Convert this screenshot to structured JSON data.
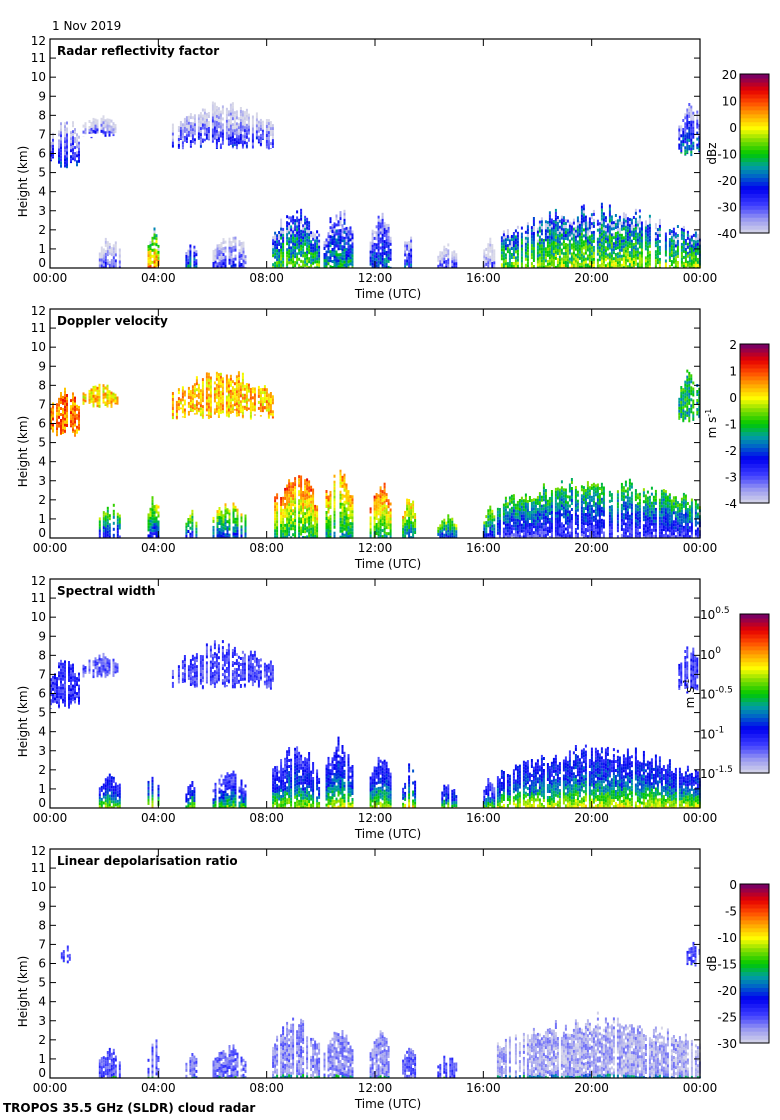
{
  "date_label": "1 Nov 2019",
  "footer_label": "TROPOS 35.5 GHz (SLDR) cloud radar",
  "chart_data": [
    {
      "type": "heatmap",
      "title": "Radar reflectivity factor",
      "xlabel": "Time (UTC)",
      "ylabel": "Height (km)",
      "xlim": [
        0,
        24
      ],
      "ylim": [
        0,
        12
      ],
      "xticks": [
        "00:00",
        "04:00",
        "08:00",
        "12:00",
        "16:00",
        "20:00",
        "00:00"
      ],
      "yticks": [
        "0",
        "1",
        "2",
        "3",
        "4",
        "5",
        "6",
        "7",
        "8",
        "9",
        "10",
        "11",
        "12"
      ],
      "colorbar": {
        "label": "dBz",
        "range": [
          -40,
          20
        ],
        "ticks": [
          "20",
          "10",
          "0",
          "-10",
          "-20",
          "-30",
          "-40"
        ]
      },
      "mode": "dbz",
      "clouds": [
        {
          "t0": 0.0,
          "t1": 1.1,
          "h0": 5.2,
          "h1": 8.3,
          "v": -30
        },
        {
          "t0": 1.2,
          "t1": 2.5,
          "h0": 6.8,
          "h1": 8.2,
          "v": -35
        },
        {
          "t0": 4.5,
          "t1": 8.2,
          "h0": 6.2,
          "h1": 8.9,
          "v": -33
        },
        {
          "t0": 23.2,
          "t1": 24.0,
          "h0": 5.8,
          "h1": 9.1,
          "v": -25
        },
        {
          "t0": 1.8,
          "t1": 2.6,
          "h0": 0,
          "h1": 1.8,
          "v": -34
        },
        {
          "t0": 3.6,
          "t1": 4.0,
          "h0": 0,
          "h1": 2.5,
          "v": 0
        },
        {
          "t0": 5.0,
          "t1": 5.4,
          "h0": 0,
          "h1": 1.7,
          "v": -22
        },
        {
          "t0": 6.0,
          "t1": 7.2,
          "h0": 0,
          "h1": 2.2,
          "v": -33
        },
        {
          "t0": 8.2,
          "t1": 9.9,
          "h0": 0,
          "h1": 3.6,
          "v": -15
        },
        {
          "t0": 10.1,
          "t1": 11.2,
          "h0": 0,
          "h1": 3.4,
          "v": -20
        },
        {
          "t0": 11.8,
          "t1": 12.6,
          "h0": 0,
          "h1": 3.2,
          "v": -25
        },
        {
          "t0": 13.0,
          "t1": 13.5,
          "h0": 0,
          "h1": 2.1,
          "v": -28
        },
        {
          "t0": 14.3,
          "t1": 15.0,
          "h0": 0,
          "h1": 1.4,
          "v": -33
        },
        {
          "t0": 16.0,
          "t1": 16.4,
          "h0": 0,
          "h1": 1.8,
          "v": -36
        },
        {
          "t0": 16.5,
          "t1": 24.0,
          "h0": 0,
          "h1": 3.5,
          "v": -12
        }
      ]
    },
    {
      "type": "heatmap",
      "title": "Doppler velocity",
      "xlabel": "Time (UTC)",
      "ylabel": "Height (km)",
      "xlim": [
        0,
        24
      ],
      "ylim": [
        0,
        12
      ],
      "xticks": [
        "00:00",
        "04:00",
        "08:00",
        "12:00",
        "16:00",
        "20:00",
        "00:00"
      ],
      "yticks": [
        "0",
        "1",
        "2",
        "3",
        "4",
        "5",
        "6",
        "7",
        "8",
        "9",
        "10",
        "11",
        "12"
      ],
      "colorbar": {
        "label": "m s-1",
        "range": [
          -4,
          2
        ],
        "ticks": [
          "2",
          "1",
          "0",
          "-1",
          "-2",
          "-3",
          "-4"
        ]
      },
      "mode": "vel",
      "clouds": [
        {
          "t0": 0.0,
          "t1": 1.1,
          "h0": 5.2,
          "h1": 8.3,
          "v": 0.7
        },
        {
          "t0": 1.2,
          "t1": 2.5,
          "h0": 6.8,
          "h1": 8.4,
          "v": 0.2
        },
        {
          "t0": 4.5,
          "t1": 8.2,
          "h0": 6.2,
          "h1": 9.0,
          "v": 0.3
        },
        {
          "t0": 23.2,
          "t1": 24.0,
          "h0": 6.0,
          "h1": 9.1,
          "v": -1.2
        },
        {
          "t0": 1.8,
          "t1": 2.6,
          "h0": 0,
          "h1": 2.0,
          "v": -1.5
        },
        {
          "t0": 3.6,
          "t1": 4.0,
          "h0": 0,
          "h1": 2.6,
          "v": -1.2
        },
        {
          "t0": 5.0,
          "t1": 5.4,
          "h0": 0,
          "h1": 1.7,
          "v": -1.4
        },
        {
          "t0": 6.0,
          "t1": 7.2,
          "h0": 0,
          "h1": 2.2,
          "v": -1.0
        },
        {
          "t0": 8.2,
          "t1": 9.9,
          "h0": 0,
          "h1": 3.8,
          "v": 0.0
        },
        {
          "t0": 10.1,
          "t1": 11.2,
          "h0": 0,
          "h1": 4.0,
          "v": -0.3
        },
        {
          "t0": 11.8,
          "t1": 12.6,
          "h0": 0,
          "h1": 3.3,
          "v": 0.0
        },
        {
          "t0": 13.0,
          "t1": 13.5,
          "h0": 0,
          "h1": 2.5,
          "v": -0.7
        },
        {
          "t0": 14.3,
          "t1": 15.0,
          "h0": 0,
          "h1": 1.4,
          "v": -1.3
        },
        {
          "t0": 16.0,
          "t1": 16.4,
          "h0": 0,
          "h1": 2.0,
          "v": -1.4
        },
        {
          "t0": 16.5,
          "t1": 24.0,
          "h0": 0,
          "h1": 3.6,
          "v": -1.8
        }
      ]
    },
    {
      "type": "heatmap",
      "title": "Spectral width",
      "xlabel": "Time (UTC)",
      "ylabel": "Height (km)",
      "xlim": [
        0,
        24
      ],
      "ylim": [
        0,
        12
      ],
      "xticks": [
        "00:00",
        "04:00",
        "08:00",
        "12:00",
        "16:00",
        "20:00",
        "00:00"
      ],
      "yticks": [
        "0",
        "1",
        "2",
        "3",
        "4",
        "5",
        "6",
        "7",
        "8",
        "9",
        "10",
        "11",
        "12"
      ],
      "colorbar": {
        "label": "m s-1",
        "range": [
          -1.5,
          0.5
        ],
        "scale": "log10",
        "ticks": [
          "10^0.5",
          "10^0",
          "10^-0.5",
          "10^-1",
          "10^-1.5"
        ]
      },
      "mode": "sw",
      "clouds": [
        {
          "t0": 0.0,
          "t1": 1.1,
          "h0": 5.2,
          "h1": 8.3,
          "v": -1.1
        },
        {
          "t0": 1.2,
          "t1": 2.5,
          "h0": 6.8,
          "h1": 8.4,
          "v": -1.2
        },
        {
          "t0": 4.5,
          "t1": 8.2,
          "h0": 6.2,
          "h1": 8.9,
          "v": -1.15
        },
        {
          "t0": 23.2,
          "t1": 24.0,
          "h0": 5.8,
          "h1": 9.0,
          "v": -1.1
        },
        {
          "t0": 1.8,
          "t1": 2.6,
          "h0": 0,
          "h1": 2.0,
          "v": -0.8
        },
        {
          "t0": 3.6,
          "t1": 4.0,
          "h0": 0,
          "h1": 2.6,
          "v": -0.7
        },
        {
          "t0": 5.0,
          "t1": 5.4,
          "h0": 0,
          "h1": 1.7,
          "v": -0.8
        },
        {
          "t0": 6.0,
          "t1": 7.2,
          "h0": 0,
          "h1": 2.2,
          "v": -0.9
        },
        {
          "t0": 8.2,
          "t1": 9.9,
          "h0": 0,
          "h1": 3.8,
          "v": -0.85
        },
        {
          "t0": 10.1,
          "t1": 11.2,
          "h0": 0,
          "h1": 4.0,
          "v": -0.8
        },
        {
          "t0": 11.8,
          "t1": 12.6,
          "h0": 0,
          "h1": 3.3,
          "v": -0.8
        },
        {
          "t0": 13.0,
          "t1": 13.5,
          "h0": 0,
          "h1": 2.5,
          "v": -0.7
        },
        {
          "t0": 14.3,
          "t1": 15.0,
          "h0": 0,
          "h1": 1.4,
          "v": -0.8
        },
        {
          "t0": 16.0,
          "t1": 16.4,
          "h0": 0,
          "h1": 2.0,
          "v": -0.9
        },
        {
          "t0": 16.5,
          "t1": 24.0,
          "h0": 0,
          "h1": 3.6,
          "v": -0.75
        }
      ]
    },
    {
      "type": "heatmap",
      "title": "Linear depolarisation ratio",
      "xlabel": "Time (UTC)",
      "ylabel": "Height (km)",
      "xlim": [
        0,
        24
      ],
      "ylim": [
        0,
        12
      ],
      "xticks": [
        "00:00",
        "04:00",
        "08:00",
        "12:00",
        "16:00",
        "20:00",
        "00:00"
      ],
      "yticks": [
        "0",
        "1",
        "2",
        "3",
        "4",
        "5",
        "6",
        "7",
        "8",
        "9",
        "10",
        "11",
        "12"
      ],
      "colorbar": {
        "label": "dB",
        "range": [
          -30,
          0
        ],
        "ticks": [
          "0",
          "-5",
          "-10",
          "-15",
          "-20",
          "-25",
          "-30"
        ]
      },
      "mode": "ldr",
      "clouds": [
        {
          "t0": 0.4,
          "t1": 0.7,
          "h0": 6.0,
          "h1": 7.2,
          "v": -24
        },
        {
          "t0": 23.5,
          "t1": 24.0,
          "h0": 5.8,
          "h1": 7.5,
          "v": -25
        },
        {
          "t0": 1.8,
          "t1": 2.6,
          "h0": 0,
          "h1": 1.8,
          "v": -25
        },
        {
          "t0": 3.6,
          "t1": 4.0,
          "h0": 0,
          "h1": 2.4,
          "v": -26
        },
        {
          "t0": 5.0,
          "t1": 5.4,
          "h0": 0,
          "h1": 1.7,
          "v": -26
        },
        {
          "t0": 6.0,
          "t1": 7.2,
          "h0": 0,
          "h1": 2.0,
          "v": -26
        },
        {
          "t0": 8.2,
          "t1": 9.9,
          "h0": 0,
          "h1": 3.6,
          "v": -27
        },
        {
          "t0": 10.1,
          "t1": 11.2,
          "h0": 0,
          "h1": 3.2,
          "v": -27
        },
        {
          "t0": 11.8,
          "t1": 12.6,
          "h0": 0,
          "h1": 3.0,
          "v": -27
        },
        {
          "t0": 13.0,
          "t1": 13.5,
          "h0": 0,
          "h1": 2.0,
          "v": -26
        },
        {
          "t0": 14.3,
          "t1": 15.0,
          "h0": 0,
          "h1": 1.4,
          "v": -25
        },
        {
          "t0": 16.5,
          "t1": 24.0,
          "h0": 0,
          "h1": 3.6,
          "v": -28
        }
      ]
    }
  ]
}
